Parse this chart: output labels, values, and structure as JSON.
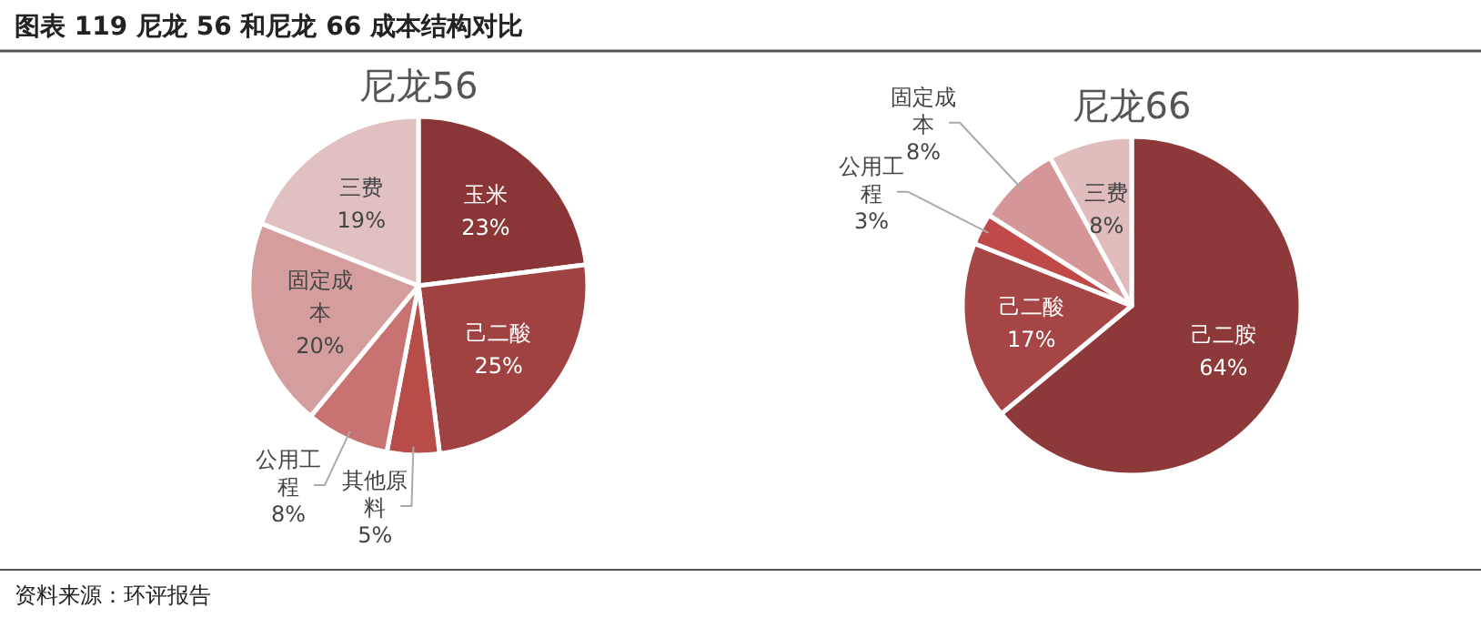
{
  "chart_data": [
    {
      "type": "other",
      "title": "图表 119 尼龙 56 和尼龙 66 成本结构对比",
      "annotations": [
        "资料来源：环评报告"
      ]
    },
    {
      "type": "pie",
      "title": "尼龙56",
      "categories": [
        "玉米",
        "己二酸",
        "其他原料",
        "公用工程",
        "固定成本",
        "三费"
      ],
      "values": [
        23,
        25,
        5,
        8,
        20,
        19
      ],
      "value_labels": [
        "23%",
        "25%",
        "5%",
        "8%",
        "20%",
        "19%"
      ],
      "colors": [
        "#8b3636",
        "#a14242",
        "#b84c49",
        "#c87272",
        "#d59e9e",
        "#e1c0c1"
      ]
    },
    {
      "type": "pie",
      "title": "尼龙66",
      "categories": [
        "己二胺",
        "己二酸",
        "公用工程",
        "固定成本",
        "三费"
      ],
      "values": [
        64,
        17,
        3,
        8,
        8
      ],
      "value_labels": [
        "64%",
        "17%",
        "3%",
        "8%",
        "8%"
      ],
      "colors": [
        "#8e3939",
        "#a54545",
        "#c04a4a",
        "#d49696",
        "#e0bcbc"
      ]
    }
  ]
}
